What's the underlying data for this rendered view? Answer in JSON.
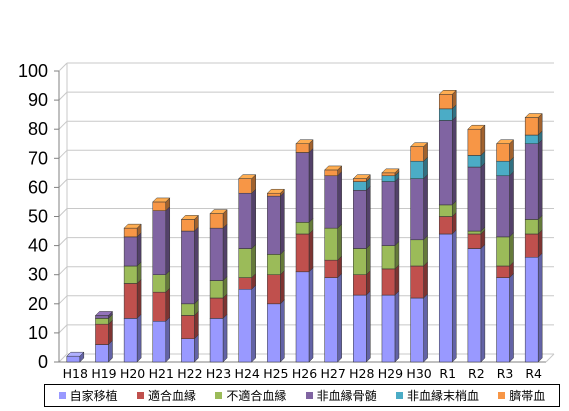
{
  "chart_data": {
    "type": "bar",
    "stacked": true,
    "ylim": [
      0,
      100
    ],
    "yticks": [
      0,
      10,
      20,
      30,
      40,
      50,
      60,
      70,
      80,
      90,
      100
    ],
    "categories": [
      "H18",
      "H19",
      "H20",
      "H21",
      "H22",
      "H23",
      "H24",
      "H25",
      "H26",
      "H27",
      "H28",
      "H29",
      "H30",
      "R1",
      "R2",
      "R3",
      "R4"
    ],
    "series": [
      {
        "name": "自家移植",
        "color": "#9999ff",
        "values": [
          2,
          6,
          15,
          14,
          8,
          15,
          25,
          20,
          31,
          29,
          23,
          23,
          22,
          44,
          39,
          29,
          36
        ]
      },
      {
        "name": "適合血縁",
        "color": "#c0504d",
        "values": [
          0,
          7,
          12,
          10,
          8,
          7,
          4,
          10,
          13,
          6,
          7,
          9,
          11,
          6,
          5,
          4,
          8
        ]
      },
      {
        "name": "不適合血縁",
        "color": "#9bbb59",
        "values": [
          0,
          2,
          6,
          6,
          4,
          6,
          10,
          7,
          4,
          11,
          9,
          8,
          9,
          4,
          1,
          10,
          5
        ]
      },
      {
        "name": "非血縁骨髄",
        "color": "#8064a2",
        "values": [
          0,
          1,
          10,
          22,
          25,
          18,
          19,
          20,
          24,
          18,
          20,
          22,
          21,
          29,
          22,
          21,
          26
        ]
      },
      {
        "name": "非血縁末梢血",
        "color": "#4bacc6",
        "values": [
          0,
          0,
          0,
          0,
          0,
          0,
          0,
          0,
          0,
          0,
          3,
          2,
          6,
          4,
          4,
          5,
          3
        ]
      },
      {
        "name": "臍帯血",
        "color": "#f79646",
        "values": [
          0,
          0,
          3,
          3,
          4,
          5,
          5,
          1,
          3,
          2,
          1,
          1,
          5,
          5,
          9,
          6,
          6
        ]
      }
    ]
  }
}
